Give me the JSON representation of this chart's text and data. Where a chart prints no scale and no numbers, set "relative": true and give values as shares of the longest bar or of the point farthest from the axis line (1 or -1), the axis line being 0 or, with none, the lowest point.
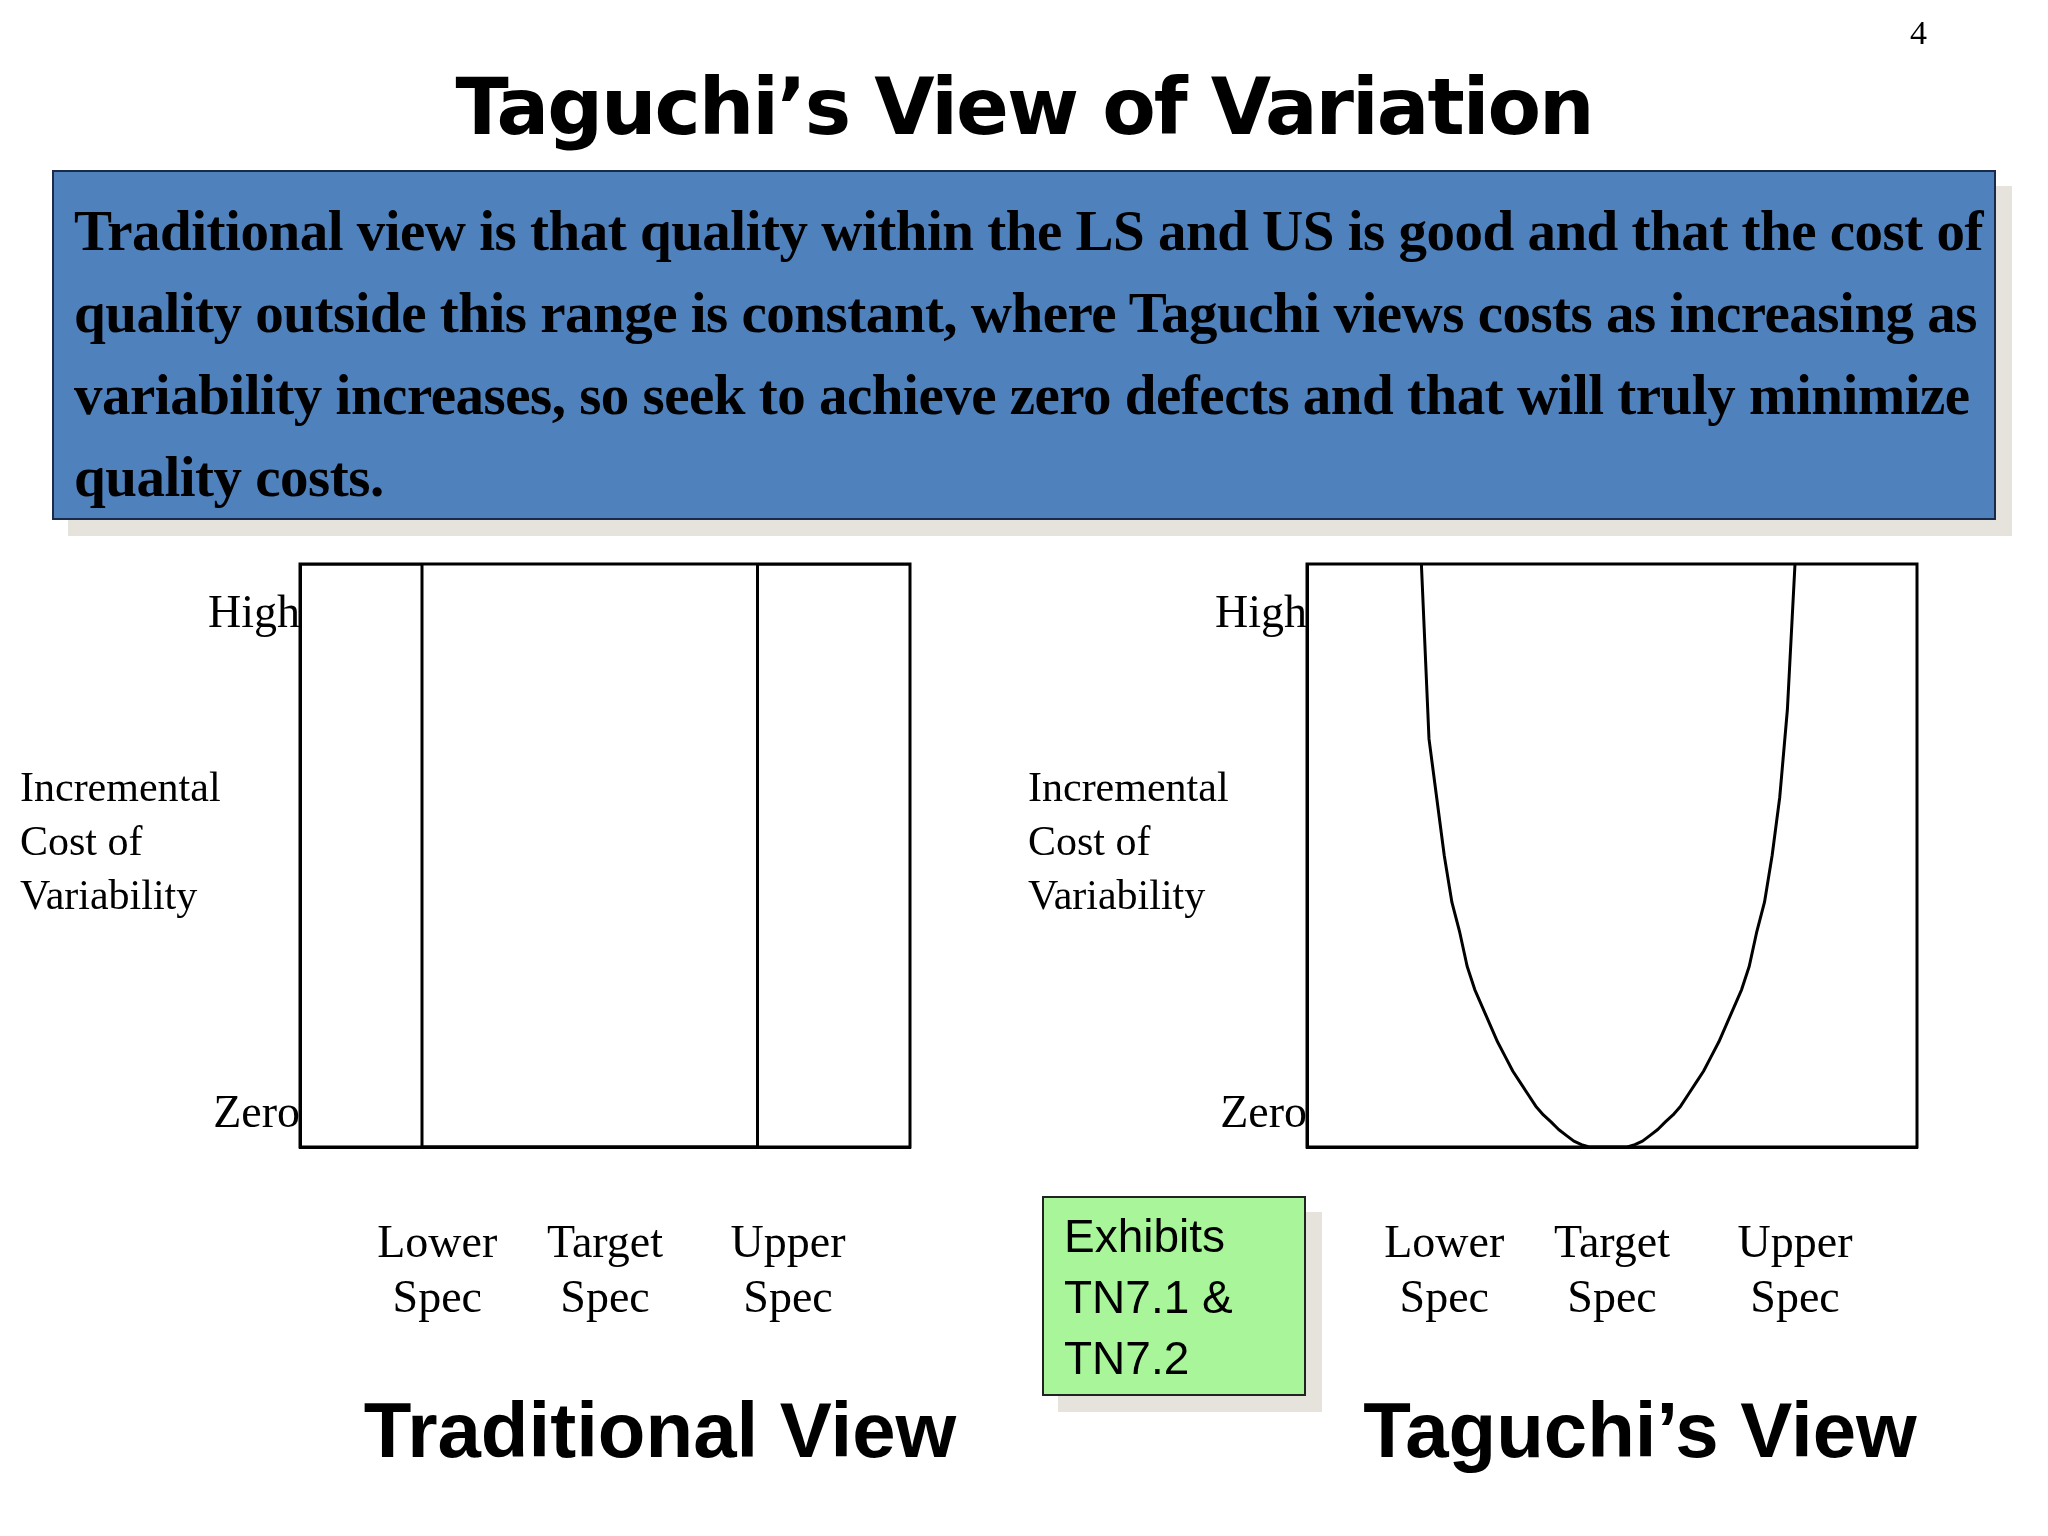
{
  "chart_data": [
    {
      "type": "step",
      "title": "Traditional View",
      "ylabel": "Incremental Cost of Variability",
      "relative": true,
      "annotations": [
        "4",
        "Taguchi’s View of Variation",
        "Traditional view is that quality within the LS and US is good and that the cost of quality outside this range is constant, where Taguchi views costs as increasing as variability increases, so seek to achieve zero defects and that will truly minimize quality costs.",
        "High",
        "Zero"
      ],
      "categories": [
        null,
        null,
        null,
        null,
        null,
        null,
        null,
        null,
        null,
        "Lower Spec",
        null,
        null,
        null,
        null,
        null,
        null,
        null,
        null,
        null,
        null,
        "Target Spec",
        null,
        null,
        null,
        null,
        null,
        null,
        null,
        null,
        null,
        null,
        null,
        "Upper Spec",
        null,
        null,
        null,
        null,
        null,
        null,
        null,
        null
      ],
      "values": [
        1,
        1,
        1,
        1,
        1,
        1,
        1,
        1,
        1,
        0,
        0,
        0,
        0,
        0,
        0,
        0,
        0,
        0,
        0,
        0,
        0,
        0,
        0,
        0,
        0,
        0,
        0,
        0,
        0,
        0,
        0,
        1,
        1,
        1,
        1,
        1,
        1,
        1,
        1,
        1,
        1
      ],
      "color": "#000000",
      "marker": "none"
    },
    {
      "type": "line",
      "title": "Taguchi’s View",
      "ylabel": "Incremental Cost of Variability",
      "relative": true,
      "annotations": [
        "Exhibits TN7.1 & TN7.2",
        "High",
        "Zero"
      ],
      "categories": [
        null,
        null,
        null,
        null,
        null,
        null,
        null,
        null,
        null,
        null,
        null,
        null,
        null,
        null,
        null,
        null,
        null,
        null,
        "Lower Spec",
        null,
        null,
        null,
        null,
        null,
        null,
        null,
        null,
        null,
        null,
        null,
        null,
        null,
        null,
        null,
        null,
        null,
        null,
        null,
        null,
        null,
        "Target Spec",
        null,
        null,
        null,
        null,
        null,
        null,
        null,
        null,
        null,
        null,
        null,
        null,
        null,
        null,
        null,
        null,
        null,
        null,
        null,
        null,
        null,
        null,
        null,
        "Upper Spec",
        null,
        null,
        null,
        null,
        null,
        null,
        null,
        null,
        null,
        null,
        null,
        null,
        null,
        null,
        null,
        null
      ],
      "values": [
        null,
        null,
        null,
        null,
        null,
        null,
        null,
        null,
        null,
        null,
        null,
        null,
        null,
        null,
        null,
        1.0,
        0.7,
        0.6,
        0.5,
        0.42,
        0.37,
        0.31,
        0.27,
        0.24,
        0.21,
        0.18,
        0.155,
        0.13,
        0.11,
        0.09,
        0.07,
        0.055,
        0.043,
        0.03,
        0.02,
        0.01,
        0.004,
        0,
        0,
        0,
        0,
        0,
        0,
        0.004,
        0.01,
        0.02,
        0.03,
        0.043,
        0.055,
        0.07,
        0.09,
        0.11,
        0.13,
        0.155,
        0.18,
        0.21,
        0.24,
        0.27,
        0.31,
        0.37,
        0.42,
        0.5,
        0.6,
        0.75,
        1.0,
        null,
        null,
        null,
        null,
        null,
        null,
        null,
        null,
        null,
        null,
        null,
        null,
        null,
        null,
        null,
        null
      ],
      "color": "#000000",
      "marker": "none"
    }
  ]
}
